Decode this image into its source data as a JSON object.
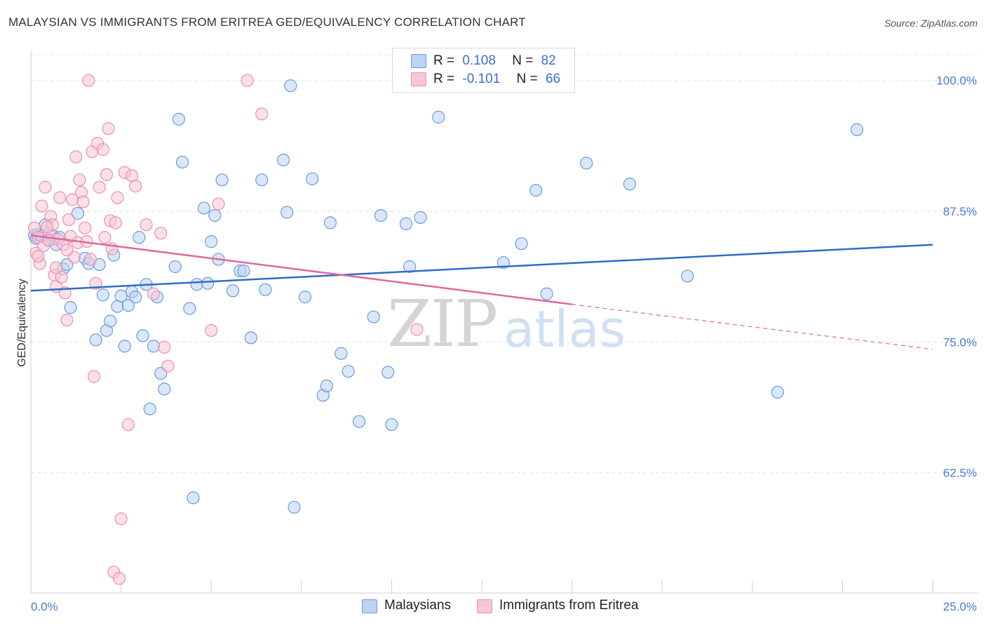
{
  "title": "MALAYSIAN VS IMMIGRANTS FROM ERITREA GED/EQUIVALENCY CORRELATION CHART",
  "source": "Source: ZipAtlas.com",
  "watermark": {
    "zip": "ZIP",
    "atlas": "atlas"
  },
  "legend": {
    "r1_label": "R =",
    "r1_value": "0.108",
    "n1_label": "N =",
    "n1_value": "82",
    "r2_label": "R =",
    "r2_value": "-0.101",
    "n2_label": "N =",
    "n2_value": "66"
  },
  "bottom_legend": {
    "s1": "Malaysians",
    "s2": "Immigrants from Eritrea"
  },
  "colors": {
    "blue": "#6a9be0",
    "blue_fill": "#bcd3f3",
    "pink": "#ec8fb0",
    "pink_fill": "#f8c6d7",
    "blue_line": "#2f6cc8",
    "pink_line": "#e0689a"
  },
  "chart_data": {
    "type": "scatter",
    "title": "MALAYSIAN VS IMMIGRANTS FROM ERITREA GED/EQUIVALENCY CORRELATION CHART",
    "xlabel": "",
    "ylabel": "GED/Equivalency",
    "xlim": [
      0,
      25
    ],
    "ylim": [
      51,
      103
    ],
    "x_ticks": [
      "0.0%",
      "25.0%"
    ],
    "y_ticks": [
      {
        "value": 62.5,
        "label": "62.5%"
      },
      {
        "value": 75.0,
        "label": "75.0%"
      },
      {
        "value": 87.5,
        "label": "87.5%"
      },
      {
        "value": 100.0,
        "label": "100.0%"
      }
    ],
    "grid": true,
    "series": [
      {
        "name": "Malaysians",
        "color": "#6a9be0",
        "trend": {
          "x": [
            0,
            25
          ],
          "y": [
            79.9,
            84.3
          ],
          "dashed_from": null
        },
        "points": [
          [
            0.1,
            85.2
          ],
          [
            0.15,
            84.9
          ],
          [
            0.2,
            85.3
          ],
          [
            0.3,
            85.1
          ],
          [
            0.4,
            86.2
          ],
          [
            0.5,
            84.8
          ],
          [
            0.6,
            85.2
          ],
          [
            0.7,
            84.3
          ],
          [
            0.8,
            85.0
          ],
          [
            0.9,
            82.0
          ],
          [
            1.0,
            82.4
          ],
          [
            1.1,
            78.3
          ],
          [
            1.3,
            87.3
          ],
          [
            1.5,
            83.0
          ],
          [
            1.6,
            82.5
          ],
          [
            1.8,
            75.2
          ],
          [
            1.9,
            82.4
          ],
          [
            2.0,
            79.5
          ],
          [
            2.1,
            76.1
          ],
          [
            2.2,
            77.0
          ],
          [
            2.3,
            83.3
          ],
          [
            2.4,
            78.4
          ],
          [
            2.5,
            79.4
          ],
          [
            2.6,
            74.6
          ],
          [
            2.7,
            78.5
          ],
          [
            2.8,
            79.8
          ],
          [
            2.9,
            79.3
          ],
          [
            3.0,
            85.0
          ],
          [
            3.1,
            75.6
          ],
          [
            3.2,
            80.5
          ],
          [
            3.3,
            68.6
          ],
          [
            3.4,
            74.6
          ],
          [
            3.5,
            79.3
          ],
          [
            3.6,
            72.0
          ],
          [
            3.7,
            70.5
          ],
          [
            4.0,
            82.2
          ],
          [
            4.1,
            96.3
          ],
          [
            4.2,
            92.2
          ],
          [
            4.4,
            78.2
          ],
          [
            4.5,
            60.1
          ],
          [
            4.6,
            80.5
          ],
          [
            4.8,
            87.8
          ],
          [
            4.9,
            80.6
          ],
          [
            5.0,
            84.6
          ],
          [
            5.1,
            87.1
          ],
          [
            5.2,
            82.9
          ],
          [
            5.3,
            90.5
          ],
          [
            5.6,
            79.9
          ],
          [
            5.8,
            81.8
          ],
          [
            5.9,
            81.8
          ],
          [
            6.1,
            75.4
          ],
          [
            6.4,
            90.5
          ],
          [
            6.5,
            80.0
          ],
          [
            7.0,
            92.4
          ],
          [
            7.1,
            87.4
          ],
          [
            7.2,
            99.5
          ],
          [
            7.3,
            59.2
          ],
          [
            7.6,
            79.3
          ],
          [
            7.8,
            90.6
          ],
          [
            8.1,
            69.9
          ],
          [
            8.2,
            70.8
          ],
          [
            8.3,
            86.4
          ],
          [
            8.6,
            73.9
          ],
          [
            8.8,
            72.2
          ],
          [
            9.1,
            67.4
          ],
          [
            9.5,
            77.4
          ],
          [
            9.7,
            87.1
          ],
          [
            9.9,
            72.1
          ],
          [
            10.0,
            67.1
          ],
          [
            10.4,
            86.3
          ],
          [
            10.5,
            82.2
          ],
          [
            10.8,
            86.9
          ],
          [
            11.3,
            96.5
          ],
          [
            13.1,
            82.6
          ],
          [
            13.6,
            84.4
          ],
          [
            14.0,
            89.5
          ],
          [
            14.3,
            79.6
          ],
          [
            15.4,
            92.1
          ],
          [
            16.6,
            90.1
          ],
          [
            18.2,
            81.3
          ],
          [
            20.7,
            70.2
          ],
          [
            22.9,
            95.3
          ]
        ]
      },
      {
        "name": "Immigrants from Eritrea",
        "color": "#ec8fb0",
        "trend": {
          "x": [
            0,
            15,
            25
          ],
          "y": [
            85.2,
            78.6,
            74.3
          ],
          "dashed_from": 15
        },
        "points": [
          [
            0.1,
            85.9
          ],
          [
            0.15,
            83.5
          ],
          [
            0.2,
            85.0
          ],
          [
            0.25,
            82.5
          ],
          [
            0.3,
            88.0
          ],
          [
            0.35,
            84.2
          ],
          [
            0.4,
            89.8
          ],
          [
            0.5,
            85.4
          ],
          [
            0.55,
            87.0
          ],
          [
            0.6,
            86.2
          ],
          [
            0.65,
            81.4
          ],
          [
            0.7,
            80.3
          ],
          [
            0.75,
            84.8
          ],
          [
            0.8,
            88.8
          ],
          [
            0.85,
            81.2
          ],
          [
            0.9,
            84.3
          ],
          [
            1.0,
            77.1
          ],
          [
            1.05,
            86.7
          ],
          [
            1.1,
            85.1
          ],
          [
            1.15,
            88.6
          ],
          [
            1.2,
            83.1
          ],
          [
            1.25,
            92.7
          ],
          [
            1.3,
            84.5
          ],
          [
            1.35,
            90.5
          ],
          [
            1.4,
            89.3
          ],
          [
            1.45,
            88.4
          ],
          [
            1.5,
            85.9
          ],
          [
            1.55,
            84.6
          ],
          [
            1.6,
            100.0
          ],
          [
            1.7,
            93.2
          ],
          [
            1.75,
            71.7
          ],
          [
            1.8,
            80.6
          ],
          [
            1.85,
            94.0
          ],
          [
            1.9,
            89.8
          ],
          [
            2.0,
            93.4
          ],
          [
            2.05,
            85.0
          ],
          [
            2.1,
            91.0
          ],
          [
            2.15,
            95.4
          ],
          [
            2.2,
            86.6
          ],
          [
            2.3,
            53.0
          ],
          [
            2.35,
            86.4
          ],
          [
            2.4,
            88.8
          ],
          [
            2.45,
            52.4
          ],
          [
            2.5,
            58.1
          ],
          [
            2.6,
            91.2
          ],
          [
            2.7,
            67.1
          ],
          [
            2.8,
            90.9
          ],
          [
            2.9,
            89.9
          ],
          [
            3.2,
            86.2
          ],
          [
            3.4,
            79.6
          ],
          [
            3.6,
            85.4
          ],
          [
            3.7,
            74.5
          ],
          [
            3.8,
            72.7
          ],
          [
            5.0,
            76.1
          ],
          [
            5.2,
            88.2
          ],
          [
            6.0,
            100.0
          ],
          [
            6.4,
            96.8
          ],
          [
            10.7,
            76.2
          ],
          [
            0.45,
            86.0
          ],
          [
            0.95,
            79.7
          ],
          [
            1.65,
            82.9
          ],
          [
            2.25,
            83.9
          ],
          [
            0.2,
            83.2
          ],
          [
            0.5,
            84.7
          ],
          [
            1.0,
            83.8
          ],
          [
            0.7,
            82.1
          ]
        ]
      }
    ]
  }
}
